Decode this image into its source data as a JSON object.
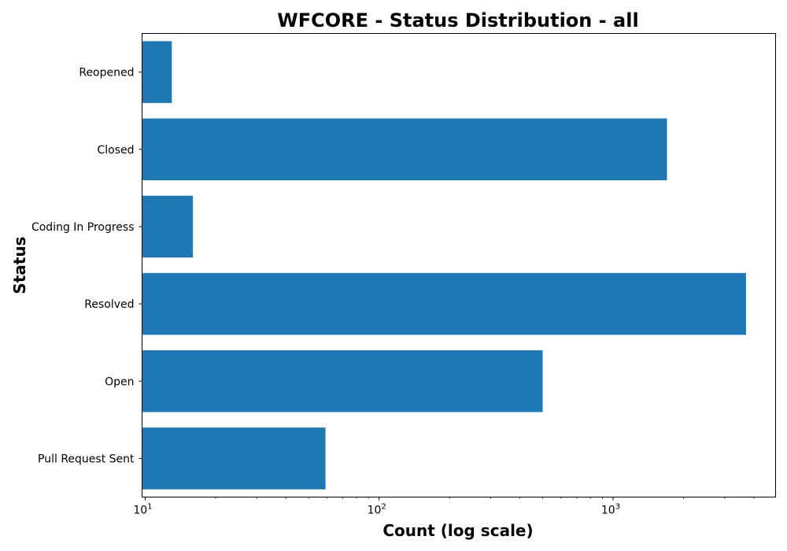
{
  "chart_data": {
    "type": "bar",
    "orientation": "horizontal",
    "title": "WFCORE - Status Distribution - all",
    "xlabel": "Count (log scale)",
    "ylabel": "Status",
    "x_scale": "log",
    "xlim": [
      9.7,
      4950
    ],
    "categories": [
      "Reopened",
      "Closed",
      "Coding In Progress",
      "Resolved",
      "Open",
      "Pull Request Sent"
    ],
    "values": [
      13,
      1700,
      16,
      3700,
      500,
      59
    ],
    "x_ticks": [
      {
        "value": 10,
        "base": "10",
        "exp": "1"
      },
      {
        "value": 100,
        "base": "10",
        "exp": "2"
      },
      {
        "value": 1000,
        "base": "10",
        "exp": "3"
      }
    ],
    "bar_color": "#1f77b4",
    "grid": false,
    "legend": "none"
  }
}
